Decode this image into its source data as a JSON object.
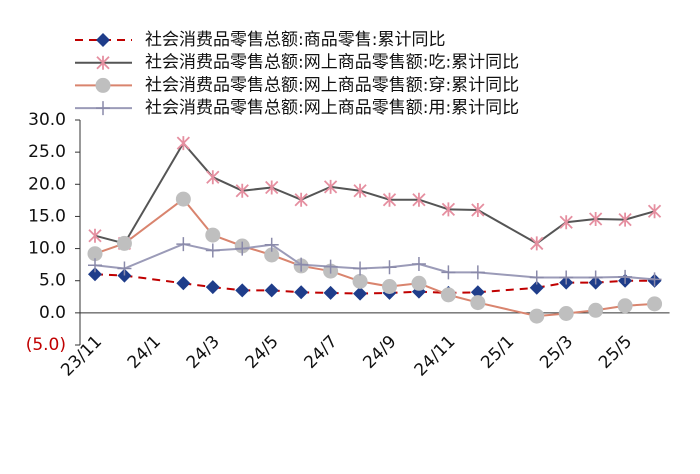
{
  "chart_data": {
    "type": "line",
    "categories": [
      "23/11",
      null,
      "24/1",
      null,
      "24/3",
      null,
      "24/5",
      null,
      "24/7",
      null,
      "24/9",
      null,
      "24/11",
      null,
      "25/1",
      null,
      "25/3",
      null,
      "25/5",
      null
    ],
    "series": [
      {
        "name": "社会消费品零售总额:商品零售:累计同比",
        "color": "#c00000",
        "marker": "diamond",
        "marker_color": "#1f3d8a",
        "dash": true,
        "values": [
          6.0,
          5.8,
          null,
          4.6,
          4.0,
          3.5,
          3.5,
          3.2,
          3.1,
          3.0,
          3.1,
          3.3,
          3.1,
          3.2,
          null,
          3.9,
          4.7,
          4.7,
          5.0,
          5.0
        ]
      },
      {
        "name": "社会消费品零售总额:网上商品零售额:吃:累计同比",
        "color": "#555555",
        "marker": "asterisk",
        "marker_color": "#e58fa0",
        "dash": false,
        "values": [
          12.0,
          10.8,
          null,
          26.4,
          21.1,
          19.0,
          19.5,
          17.6,
          19.6,
          19.0,
          17.6,
          17.6,
          16.1,
          16.0,
          null,
          10.8,
          14.1,
          14.6,
          14.5,
          15.8
        ]
      },
      {
        "name": "社会消费品零售总额:网上商品零售额:穿:累计同比",
        "color": "#d9846e",
        "marker": "circle",
        "marker_color": "#bfbfbf",
        "dash": false,
        "values": [
          9.2,
          10.8,
          null,
          17.7,
          12.1,
          10.4,
          9.0,
          7.3,
          6.5,
          4.9,
          4.1,
          4.6,
          2.8,
          1.6,
          null,
          -0.5,
          -0.1,
          0.4,
          1.1,
          1.4
        ]
      },
      {
        "name": "社会消费品零售总额:网上商品零售额:用:累计同比",
        "color": "#9b9bb8",
        "marker": "plus",
        "marker_color": "#8a8aaa",
        "dash": false,
        "values": [
          7.4,
          6.9,
          null,
          10.7,
          9.7,
          10.0,
          10.6,
          7.5,
          7.2,
          6.9,
          7.1,
          7.6,
          6.3,
          6.3,
          null,
          5.5,
          5.5,
          5.5,
          5.6,
          5.2
        ]
      }
    ],
    "ylim": [
      -5,
      30
    ],
    "yticks": [
      {
        "value": -5,
        "label": "(5.0)"
      },
      {
        "value": 0,
        "label": "0.0"
      },
      {
        "value": 5,
        "label": "5.0"
      },
      {
        "value": 10,
        "label": "10.0"
      },
      {
        "value": 15,
        "label": "15.0"
      },
      {
        "value": 20,
        "label": "20.0"
      },
      {
        "value": 25,
        "label": "25.0"
      },
      {
        "value": 30,
        "label": "30.0"
      }
    ],
    "negative_tick_color": "#c00000"
  }
}
